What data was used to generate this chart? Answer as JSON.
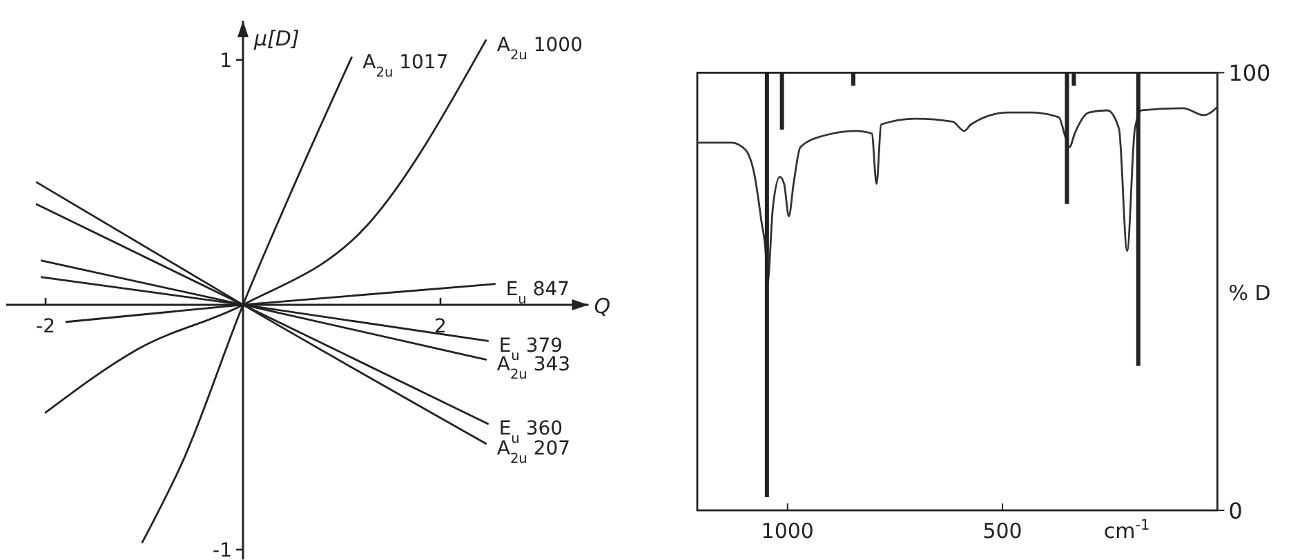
{
  "chart_data": [
    {
      "type": "line",
      "xlabel": "Q",
      "ylabel": "μ[D]",
      "xlim": [
        -2.4,
        3.5
      ],
      "ylim": [
        -1.04,
        1.16
      ],
      "xticks": [
        -2,
        2
      ],
      "yticks": [
        -1,
        1
      ],
      "grid": false,
      "series": [
        {
          "name": "A$_{2u}$ 1017",
          "color": "#222222",
          "x": [
            -1.02,
            -0.6,
            0,
            0.52,
            1.1
          ],
          "values": [
            -0.97,
            -0.63,
            0,
            0.49,
            1.01
          ]
        },
        {
          "name": "A$_{2u}$ 1000",
          "color": "#222222",
          "x": [
            -2.0,
            -1.06,
            0,
            1.27,
            2.46
          ],
          "values": [
            -0.44,
            -0.18,
            0,
            0.33,
            1.08
          ]
        },
        {
          "name": "E$_{u}$ 847",
          "color": "#222222",
          "x": [
            -1.79,
            0,
            2.55
          ],
          "values": [
            -0.07,
            0,
            0.085
          ]
        },
        {
          "name": "E$_{u}$ 379",
          "color": "#222222",
          "x": [
            -2.04,
            0,
            2.48
          ],
          "values": [
            0.113,
            0,
            -0.148
          ]
        },
        {
          "name": "A$_{2u}$ 343",
          "color": "#222222",
          "x": [
            -2.04,
            0,
            2.46
          ],
          "values": [
            0.18,
            0,
            -0.224
          ]
        },
        {
          "name": "E$_{u}$ 360",
          "color": "#222222",
          "x": [
            -2.09,
            0,
            2.48
          ],
          "values": [
            0.41,
            0,
            -0.486
          ]
        },
        {
          "name": "A$_{2u}$ 207",
          "color": "#222222",
          "x": [
            -2.09,
            0,
            2.46
          ],
          "values": [
            0.5,
            0,
            -0.567
          ]
        }
      ]
    },
    {
      "type": "line",
      "xlabel": "cm$^{-1}$",
      "ylabel": "% D",
      "xlim": [
        1210,
        0
      ],
      "ylim": [
        0,
        100
      ],
      "xticks": [
        1000,
        500
      ],
      "yticks": [
        0,
        100
      ],
      "grid": false,
      "series": [
        {
          "color": "#333333",
          "x": [
            1210,
            1131,
            1099,
            1077,
            1061,
            1050,
            1047,
            1034,
            1018,
            1008,
            997,
            986,
            970,
            916,
            841,
            804,
            793,
            782,
            702,
            616,
            589,
            573,
            487,
            433,
            369,
            353,
            344,
            332,
            299,
            256,
            229,
            210,
            192,
            176,
            80,
            31,
            0
          ],
          "values": [
            84,
            84,
            82.5,
            76.7,
            66.2,
            57.8,
            51.5,
            69.3,
            76.2,
            74.6,
            67.2,
            74.6,
            83,
            85.6,
            86.7,
            86.1,
            74.6,
            88.2,
            89.5,
            88.8,
            86.7,
            88.2,
            90.9,
            90.9,
            89.8,
            85.1,
            83,
            86.1,
            90.9,
            91.4,
            87.2,
            59.3,
            87.2,
            91.4,
            91.9,
            90.3,
            92.2
          ]
        },
        {
          "type": "bar",
          "color": "#222222",
          "x": [
            1048,
            1013,
            847,
            350,
            334,
            184
          ],
          "base": [
            100,
            100,
            100,
            100,
            100,
            100
          ],
          "values": [
            -97,
            -13,
            -3,
            -30,
            -3,
            -67
          ]
        }
      ]
    }
  ]
}
